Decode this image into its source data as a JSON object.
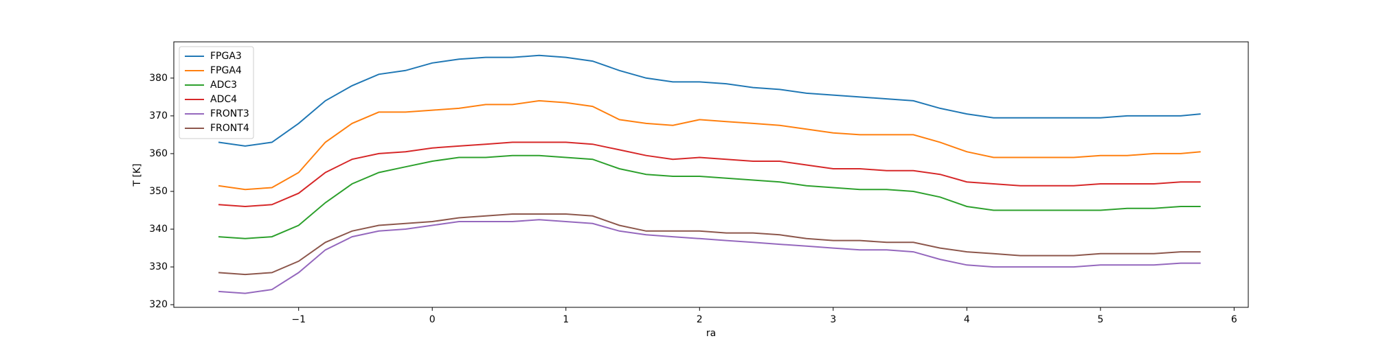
{
  "chart_data": {
    "type": "line",
    "x_label": "ra",
    "y_label": "T [K]",
    "x": [
      -1.6,
      -1.4,
      -1.2,
      -1.0,
      -0.8,
      -0.6,
      -0.4,
      -0.2,
      0,
      0.2,
      0.4,
      0.6,
      0.8,
      1.0,
      1.2,
      1.4,
      1.6,
      1.8,
      2.0,
      2.2,
      2.4,
      2.6,
      2.8,
      3.0,
      3.2,
      3.4,
      3.6,
      3.8,
      4.0,
      4.2,
      4.4,
      4.6,
      4.8,
      5.0,
      5.2,
      5.4,
      5.6,
      5.75
    ],
    "series": [
      {
        "name": "FPGA3",
        "color": "#1f77b4",
        "values": [
          363,
          362,
          363,
          368,
          374,
          378,
          381,
          382,
          384,
          385,
          385.5,
          385.5,
          386,
          385.5,
          384.5,
          382,
          380,
          379,
          379,
          378.5,
          377.5,
          377,
          376,
          375.5,
          375,
          374.5,
          374,
          372,
          370.5,
          369.5,
          369.5,
          369.5,
          369.5,
          369.5,
          370,
          370,
          370,
          370.5
        ]
      },
      {
        "name": "FPGA4",
        "color": "#ff7f0e",
        "values": [
          351.5,
          350.5,
          351,
          355,
          363,
          368,
          371,
          371,
          371.5,
          372,
          373,
          373,
          374,
          373.5,
          372.5,
          369,
          368,
          367.5,
          369,
          368.5,
          368,
          367.5,
          366.5,
          365.5,
          365,
          365,
          365,
          363,
          360.5,
          359,
          359,
          359,
          359,
          359.5,
          359.5,
          360,
          360,
          360.5
        ]
      },
      {
        "name": "ADC3",
        "color": "#2ca02c",
        "values": [
          338,
          337.5,
          338,
          341,
          347,
          352,
          355,
          356.5,
          358,
          359,
          359,
          359.5,
          359.5,
          359,
          358.5,
          356,
          354.5,
          354,
          354,
          353.5,
          353,
          352.5,
          351.5,
          351,
          350.5,
          350.5,
          350,
          348.5,
          346,
          345,
          345,
          345,
          345,
          345,
          345.5,
          345.5,
          346,
          346
        ]
      },
      {
        "name": "ADC4",
        "color": "#d62728",
        "values": [
          346.5,
          346,
          346.5,
          349.5,
          355,
          358.5,
          360,
          360.5,
          361.5,
          362,
          362.5,
          363,
          363,
          363,
          362.5,
          361,
          359.5,
          358.5,
          359,
          358.5,
          358,
          358,
          357,
          356,
          356,
          355.5,
          355.5,
          354.5,
          352.5,
          352,
          351.5,
          351.5,
          351.5,
          352,
          352,
          352,
          352.5,
          352.5
        ]
      },
      {
        "name": "FRONT3",
        "color": "#9467bd",
        "values": [
          323.5,
          323,
          324,
          328.5,
          334.5,
          338,
          339.5,
          340,
          341,
          342,
          342,
          342,
          342.5,
          342,
          341.5,
          339.5,
          338.5,
          338,
          337.5,
          337,
          336.5,
          336,
          335.5,
          335,
          334.5,
          334.5,
          334,
          332,
          330.5,
          330,
          330,
          330,
          330,
          330.5,
          330.5,
          330.5,
          331,
          331
        ]
      },
      {
        "name": "FRONT4",
        "color": "#8c564b",
        "values": [
          328.5,
          328,
          328.5,
          331.5,
          336.5,
          339.5,
          341,
          341.5,
          342,
          343,
          343.5,
          344,
          344,
          344,
          343.5,
          341,
          339.5,
          339.5,
          339.5,
          339,
          339,
          338.5,
          337.5,
          337,
          337,
          336.5,
          336.5,
          335,
          334,
          333.5,
          333,
          333,
          333,
          333.5,
          333.5,
          333.5,
          334,
          334
        ]
      }
    ],
    "xlim": [
      -1.934,
      6.106
    ],
    "ylim": [
      319.3,
      389.6
    ],
    "xticks": [
      {
        "value": -1,
        "label": "−1"
      },
      0,
      1,
      2,
      3,
      4,
      5,
      6
    ],
    "yticks": [
      320,
      330,
      340,
      350,
      360,
      370,
      380
    ],
    "legend": "upper left",
    "grid": false
  }
}
